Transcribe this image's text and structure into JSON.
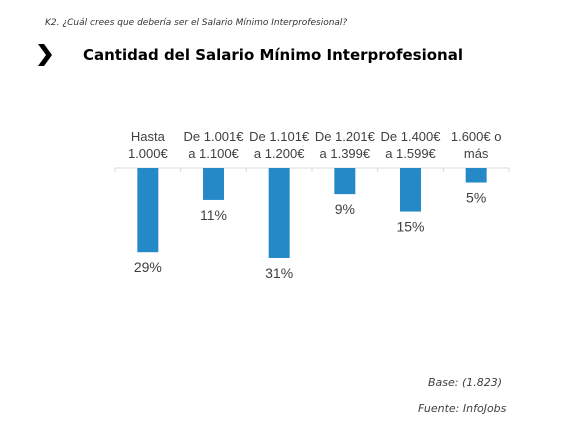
{
  "header": {
    "question": "K2. ¿Cuál crees que debería ser el Salario Mínimo Interprofesional?",
    "title": "Cantidad del Salario Mínimo Interprofesional",
    "chevron_icon": "chevron-right-icon"
  },
  "chart_data": {
    "type": "bar",
    "orientation": "downward",
    "categories": [
      [
        "Hasta",
        "1.000€"
      ],
      [
        "De 1.001€",
        "a 1.100€"
      ],
      [
        "De 1.101€",
        "a 1.200€"
      ],
      [
        "De 1.201€",
        "a 1.399€"
      ],
      [
        "De 1.400€",
        "a 1.599€"
      ],
      [
        "1.600€ o",
        "más"
      ]
    ],
    "values": [
      29,
      11,
      31,
      9,
      15,
      5
    ],
    "value_labels": [
      "29%",
      "11%",
      "31%",
      "9%",
      "15%",
      "5%"
    ],
    "unit": "%",
    "bar_color": "#2589C7",
    "axis_color": "#D9D9D9",
    "label_color": "#404040",
    "grid": false,
    "legend": "none"
  },
  "footer": {
    "base": "Base: (1.823)",
    "source": "Fuente: InfoJobs"
  }
}
